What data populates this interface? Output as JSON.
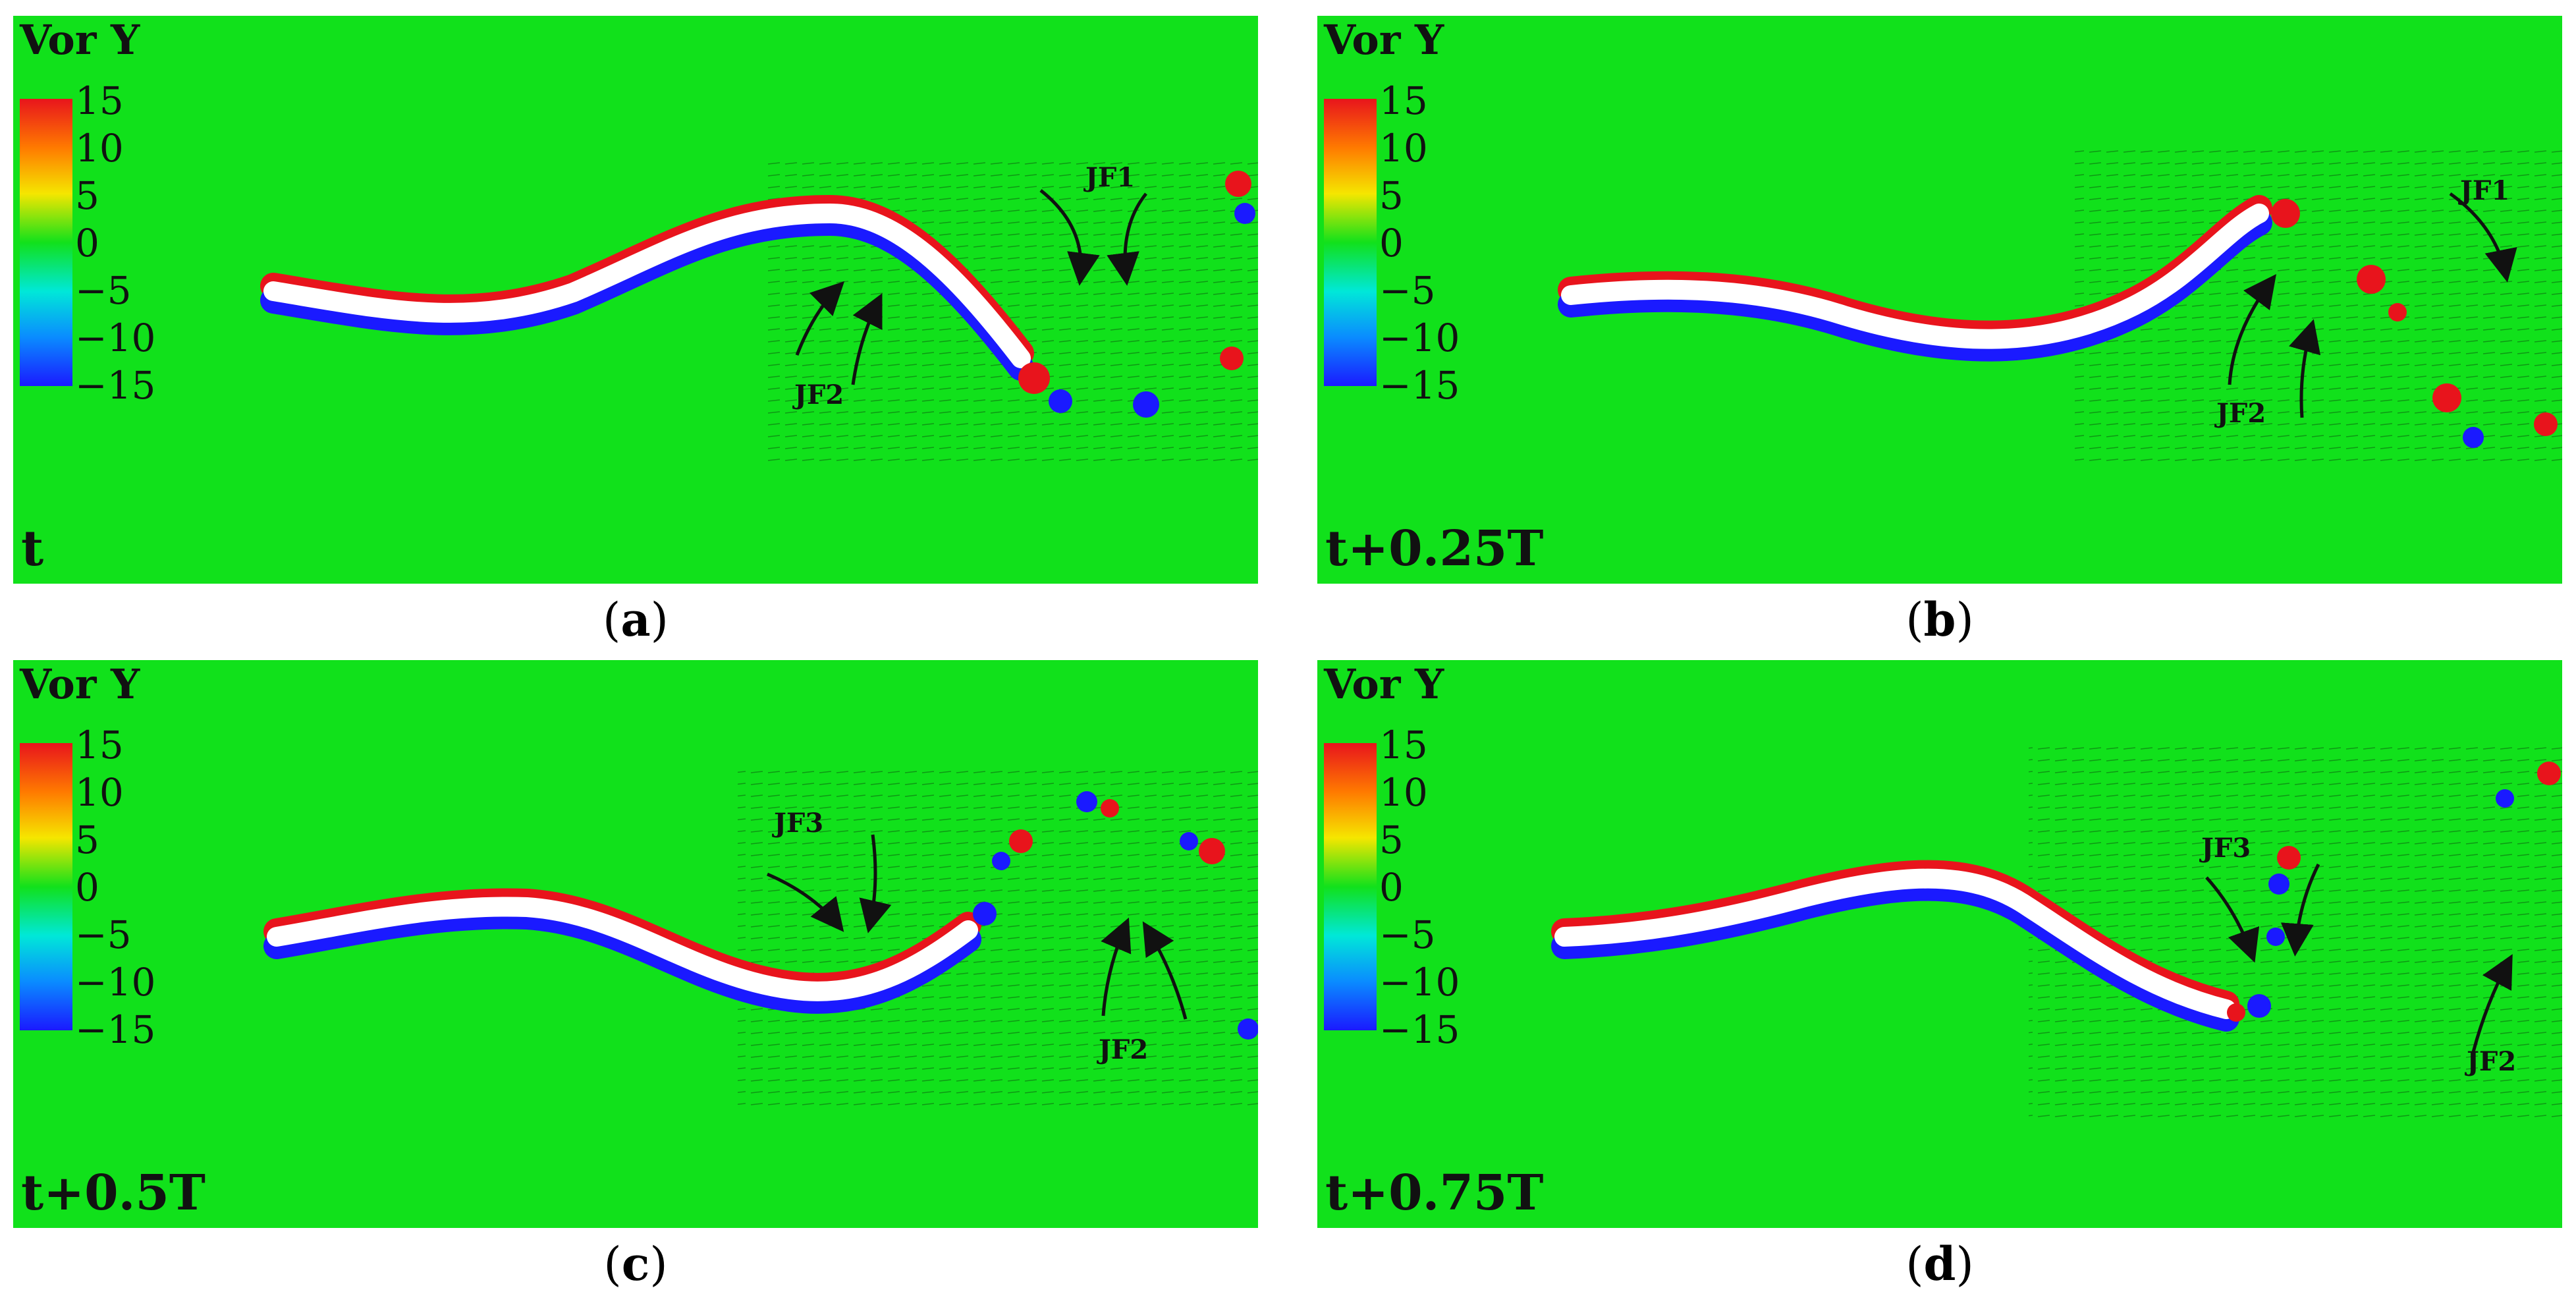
{
  "figure": {
    "legend": {
      "title": "Vor Y",
      "ticks": [
        "15",
        "10",
        "5",
        "0",
        "−5",
        "−10",
        "−15"
      ],
      "colormap": [
        "#e8141c",
        "#ff7a00",
        "#f5e600",
        "#11e11b",
        "#00e8d8",
        "#0a8cff",
        "#1a1aff"
      ]
    },
    "panels": [
      {
        "time": "t",
        "caption": "a",
        "jets": [
          "JF1",
          "JF2"
        ]
      },
      {
        "time": "t+0.25T",
        "caption": "b",
        "jets": [
          "JF1",
          "JF2"
        ]
      },
      {
        "time": "t+0.5T",
        "caption": "c",
        "jets": [
          "JF3",
          "JF2"
        ]
      },
      {
        "time": "t+0.75T",
        "caption": "d",
        "jets": [
          "JF3",
          "JF2"
        ]
      }
    ],
    "colors": {
      "background": "#11e11b",
      "positive": "#e8141c",
      "negative": "#1a1aff",
      "body": "#ffffff"
    }
  }
}
